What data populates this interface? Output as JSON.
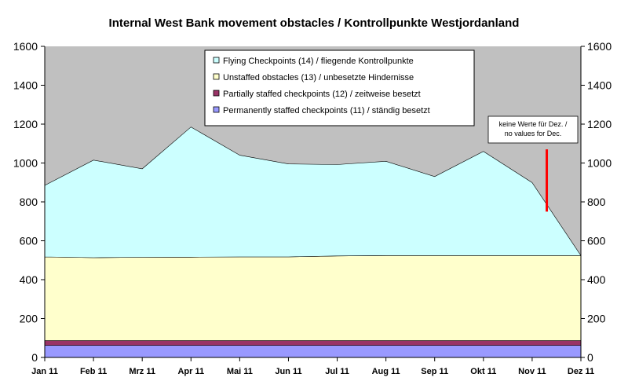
{
  "chart_data": {
    "type": "area",
    "stacked": true,
    "title": "Internal West Bank movement obstacles / Kontrollpunkte Westjordanland",
    "xlabel": "",
    "ylabel": "",
    "ylim": [
      0,
      1600
    ],
    "yticks": [
      "0",
      "200",
      "400",
      "600",
      "800",
      "1000",
      "1200",
      "1400",
      "1600"
    ],
    "categories": [
      "Jan 11",
      "Feb 11",
      "Mrz 11",
      "Apr 11",
      "Mai 11",
      "Jun 11",
      "Jul 11",
      "Aug 11",
      "Sep 11",
      "Okt 11",
      "Nov 11",
      "Dez 11"
    ],
    "grid": false,
    "legend_position": "top-center",
    "series": [
      {
        "name": "Permanently staffed checkpoints (11) / ständig besetzt",
        "color": "#9999ff",
        "values": [
          62,
          62,
          62,
          62,
          62,
          62,
          62,
          62,
          62,
          62,
          62,
          62
        ]
      },
      {
        "name": "Partially staffed checkpoints (12) / zeitweise besetzt",
        "color": "#993366",
        "values": [
          25,
          25,
          25,
          25,
          25,
          25,
          25,
          25,
          25,
          25,
          25,
          25
        ]
      },
      {
        "name": "Unstaffed obstacles (13) / unbesetzte Hindernisse",
        "color": "#ffffcc",
        "values": [
          430,
          426,
          428,
          429,
          430,
          430,
          435,
          437,
          437,
          437,
          437,
          437
        ]
      },
      {
        "name": "Flying Checkpoints (14) / fliegende Kontrollpunkte",
        "color": "#ccffff",
        "values": [
          368,
          502,
          455,
          669,
          523,
          478,
          470,
          485,
          406,
          536,
          375,
          0
        ]
      }
    ],
    "annotation": {
      "lines": [
        "keine Werte für Dez. /",
        "no values for Dec."
      ],
      "marker_x": 10.3,
      "marker_y_range": [
        750,
        1070
      ],
      "marker_color": "#ff0000"
    },
    "colors": {
      "plot_background": "#c0c0c0",
      "page_background": "#ffffff",
      "axis": "#000000"
    }
  }
}
